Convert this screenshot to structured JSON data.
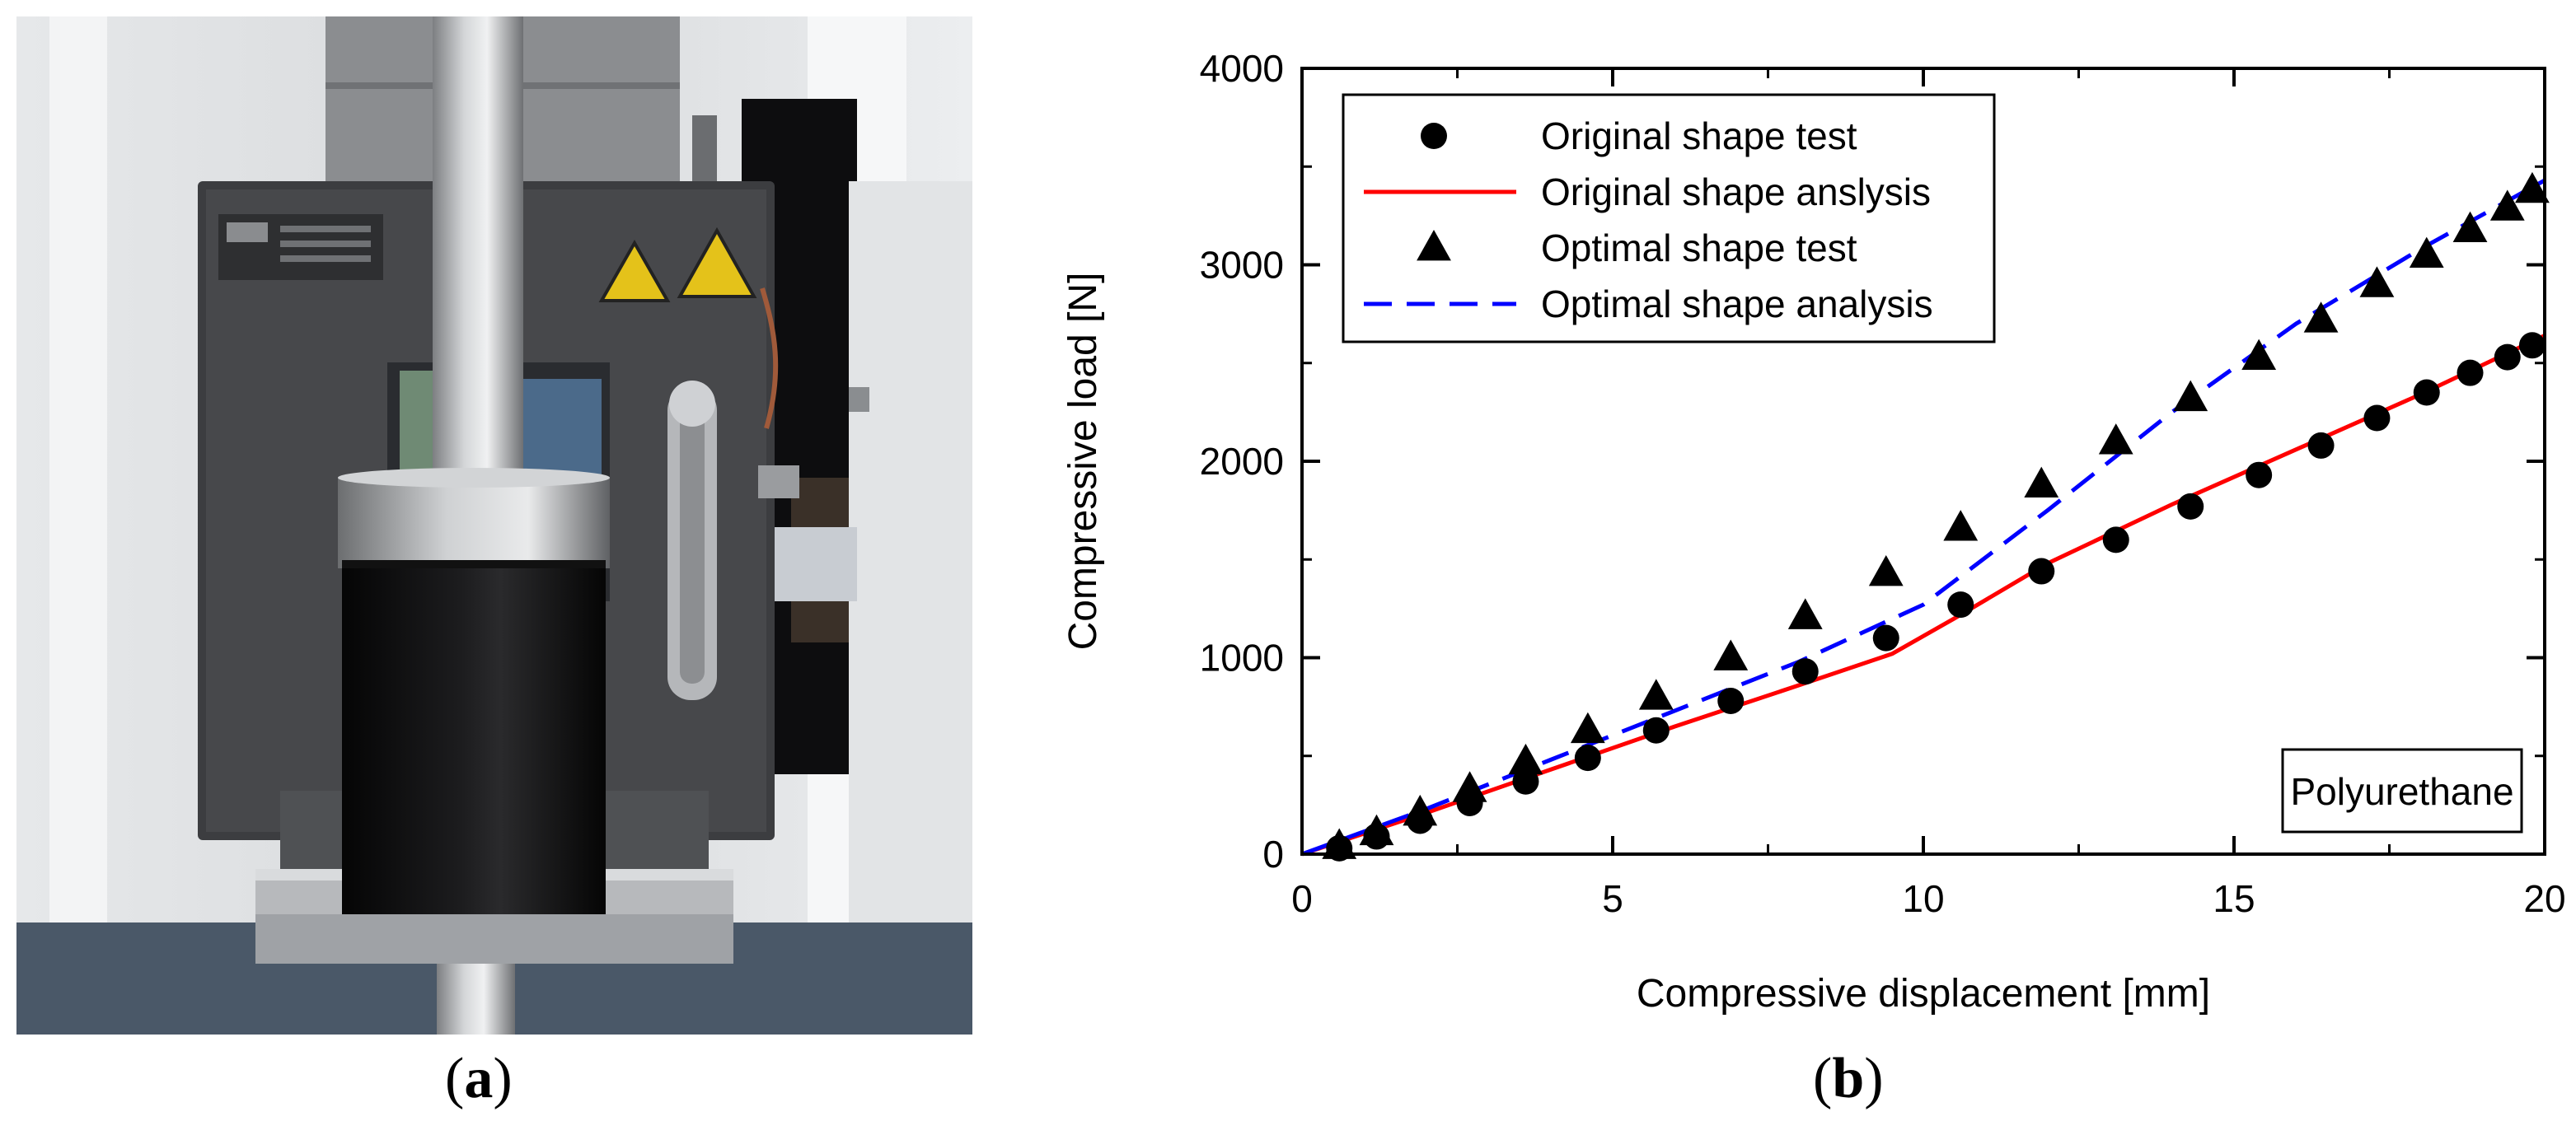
{
  "panels": {
    "a": {
      "label_open": "(",
      "label_letter": "a",
      "label_close": ")"
    },
    "b": {
      "label_open": "(",
      "label_letter": "b",
      "label_close": ")"
    }
  },
  "colors": {
    "original_analysis": "#ff0000",
    "optimal_analysis": "#0000ff",
    "markers": "#000000"
  },
  "chart_data": {
    "type": "scatter",
    "title": "",
    "xlabel": "Compressive displacement [mm]",
    "ylabel": "Compressive load [N]",
    "xlim": [
      0,
      20
    ],
    "ylim": [
      0,
      4000
    ],
    "x_ticks": [
      0,
      5,
      10,
      15,
      20
    ],
    "y_ticks": [
      0,
      1000,
      2000,
      3000,
      4000
    ],
    "annotation": "Polyurethane",
    "legend_position": "top-left",
    "grid": false,
    "series": [
      {
        "name": "Original shape test",
        "kind": "markers",
        "marker": "circle",
        "points": [
          [
            0.6,
            30
          ],
          [
            1.2,
            90
          ],
          [
            1.9,
            170
          ],
          [
            2.7,
            260
          ],
          [
            3.6,
            370
          ],
          [
            4.6,
            490
          ],
          [
            5.7,
            630
          ],
          [
            6.9,
            780
          ],
          [
            8.1,
            930
          ],
          [
            9.4,
            1100
          ],
          [
            10.6,
            1270
          ],
          [
            11.9,
            1440
          ],
          [
            13.1,
            1600
          ],
          [
            14.3,
            1770
          ],
          [
            15.4,
            1930
          ],
          [
            16.4,
            2080
          ],
          [
            17.3,
            2220
          ],
          [
            18.1,
            2350
          ],
          [
            18.8,
            2450
          ],
          [
            19.4,
            2530
          ],
          [
            19.8,
            2590
          ]
        ]
      },
      {
        "name": "Original shape anslysis",
        "kind": "line",
        "style": "solid",
        "points": [
          [
            0,
            0
          ],
          [
            2,
            210
          ],
          [
            4,
            430
          ],
          [
            6,
            650
          ],
          [
            8,
            860
          ],
          [
            9.5,
            1020
          ],
          [
            10.5,
            1200
          ],
          [
            12,
            1480
          ],
          [
            14,
            1780
          ],
          [
            16,
            2060
          ],
          [
            18,
            2340
          ],
          [
            20,
            2640
          ]
        ]
      },
      {
        "name": "Optimal shape test",
        "kind": "markers",
        "marker": "triangle",
        "points": [
          [
            0.6,
            40
          ],
          [
            1.2,
            110
          ],
          [
            1.9,
            210
          ],
          [
            2.7,
            330
          ],
          [
            3.6,
            470
          ],
          [
            4.6,
            630
          ],
          [
            5.7,
            800
          ],
          [
            6.9,
            1000
          ],
          [
            8.1,
            1210
          ],
          [
            9.4,
            1430
          ],
          [
            10.6,
            1660
          ],
          [
            11.9,
            1880
          ],
          [
            13.1,
            2100
          ],
          [
            14.3,
            2320
          ],
          [
            15.4,
            2530
          ],
          [
            16.4,
            2720
          ],
          [
            17.3,
            2900
          ],
          [
            18.1,
            3050
          ],
          [
            18.8,
            3180
          ],
          [
            19.4,
            3290
          ],
          [
            19.8,
            3380
          ]
        ]
      },
      {
        "name": "Optimal shape analysis",
        "kind": "line",
        "style": "dashed",
        "points": [
          [
            0,
            0
          ],
          [
            2,
            230
          ],
          [
            4,
            480
          ],
          [
            6,
            730
          ],
          [
            8,
            980
          ],
          [
            10,
            1270
          ],
          [
            12,
            1750
          ],
          [
            14,
            2250
          ],
          [
            16,
            2700
          ],
          [
            18,
            3080
          ],
          [
            20,
            3430
          ]
        ]
      }
    ]
  }
}
